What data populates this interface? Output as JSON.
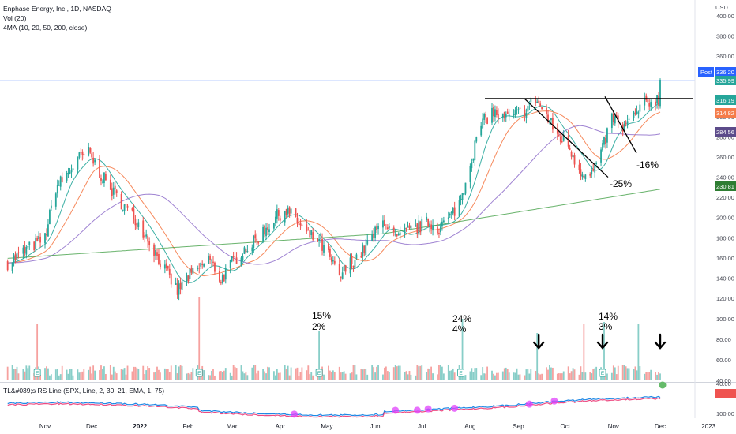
{
  "header": {
    "title": "Enphase Energy, Inc., 1D, NASDAQ",
    "vol_label": "Vol (20)",
    "ma_label": "4MA (10, 20, 50, 200, close)",
    "rs_label": "TL&#039;s RS Line (SPX, Line, 2, 30, 21, EMA, 1, 75)"
  },
  "chart_data": {
    "type": "line",
    "title": "Enphase Energy, Inc., 1D, NASDAQ",
    "y_axis": {
      "currency": "USD",
      "ticks": [
        400,
        380,
        360,
        340,
        320,
        300,
        280,
        260,
        240,
        220,
        200,
        180,
        160,
        140,
        120,
        100,
        80,
        60,
        40
      ],
      "ylim": [
        40,
        405
      ]
    },
    "x_axis": {
      "tick_labels": [
        "Nov",
        "Dec",
        "2022",
        "Feb",
        "Mar",
        "Apr",
        "May",
        "Jun",
        "Jul",
        "Aug",
        "Sep",
        "Oct",
        "Nov",
        "Dec",
        "2023"
      ],
      "tick_dates": [
        "2021-11-01",
        "2021-12-01",
        "2022-01-01",
        "2022-02-01",
        "2022-03-01",
        "2022-04-01",
        "2022-05-01",
        "2022-06-01",
        "2022-07-01",
        "2022-08-01",
        "2022-09-01",
        "2022-10-01",
        "2022-11-01",
        "2022-12-01",
        "2023-01-01"
      ]
    },
    "price_path": [
      [
        "2021-10-08",
        155
      ],
      [
        "2021-10-20",
        168
      ],
      [
        "2021-11-01",
        180
      ],
      [
        "2021-11-08",
        230
      ],
      [
        "2021-11-15",
        242
      ],
      [
        "2021-11-22",
        258
      ],
      [
        "2021-11-29",
        264
      ],
      [
        "2021-12-06",
        245
      ],
      [
        "2021-12-13",
        228
      ],
      [
        "2021-12-20",
        215
      ],
      [
        "2021-12-28",
        200
      ],
      [
        "2022-01-04",
        185
      ],
      [
        "2022-01-11",
        165
      ],
      [
        "2022-01-18",
        145
      ],
      [
        "2022-01-25",
        127
      ],
      [
        "2022-01-31",
        140
      ],
      [
        "2022-02-07",
        148
      ],
      [
        "2022-02-14",
        160
      ],
      [
        "2022-02-22",
        138
      ],
      [
        "2022-03-01",
        155
      ],
      [
        "2022-03-08",
        168
      ],
      [
        "2022-03-15",
        175
      ],
      [
        "2022-03-22",
        188
      ],
      [
        "2022-03-29",
        200
      ],
      [
        "2022-04-04",
        208
      ],
      [
        "2022-04-11",
        198
      ],
      [
        "2022-04-18",
        183
      ],
      [
        "2022-04-25",
        178
      ],
      [
        "2022-05-02",
        162
      ],
      [
        "2022-05-09",
        140
      ],
      [
        "2022-05-16",
        155
      ],
      [
        "2022-05-23",
        165
      ],
      [
        "2022-05-31",
        182
      ],
      [
        "2022-06-07",
        198
      ],
      [
        "2022-06-14",
        178
      ],
      [
        "2022-06-21",
        185
      ],
      [
        "2022-06-28",
        190
      ],
      [
        "2022-07-05",
        195
      ],
      [
        "2022-07-12",
        190
      ],
      [
        "2022-07-19",
        200
      ],
      [
        "2022-07-26",
        218
      ],
      [
        "2022-08-01",
        255
      ],
      [
        "2022-08-08",
        292
      ],
      [
        "2022-08-15",
        305
      ],
      [
        "2022-08-22",
        298
      ],
      [
        "2022-08-29",
        300
      ],
      [
        "2022-09-06",
        308
      ],
      [
        "2022-09-12",
        318
      ],
      [
        "2022-09-19",
        300
      ],
      [
        "2022-09-26",
        282
      ],
      [
        "2022-10-03",
        272
      ],
      [
        "2022-10-10",
        248
      ],
      [
        "2022-10-17",
        240
      ],
      [
        "2022-10-24",
        262
      ],
      [
        "2022-10-31",
        300
      ],
      [
        "2022-11-07",
        288
      ],
      [
        "2022-11-14",
        300
      ],
      [
        "2022-11-21",
        312
      ],
      [
        "2022-11-28",
        318
      ],
      [
        "2022-12-01",
        316
      ]
    ],
    "current_close": 336.2,
    "series": [
      {
        "name": "Post",
        "last_value": 336.2,
        "color": "#2962ff"
      },
      {
        "name": "MA 10",
        "last_value": 316.19,
        "color": "#26a69a"
      },
      {
        "name": "MA 20",
        "last_value": 314.82,
        "color": "#f57c4a"
      },
      {
        "name": "MA 50",
        "last_value": 284.56,
        "color": "#9575cd"
      },
      {
        "name": "MA 200",
        "last_value": 230.81,
        "color": "#43a047"
      }
    ],
    "last_price_label": 335.99,
    "resistance_level": 318,
    "annotations": {
      "decline_1": "-25%",
      "decline_2": "-16%",
      "vol_mark_apr_top": "15%",
      "vol_mark_apr_bottom": "2%",
      "vol_mark_aug_top": "24%",
      "vol_mark_aug_bottom": "4%",
      "vol_mark_oct_top": "14%",
      "vol_mark_oct_bottom": "3%"
    },
    "earnings_dates": [
      "2021-10-27",
      "2022-02-08",
      "2022-04-26",
      "2022-07-26",
      "2022-10-25"
    ],
    "volume_spikes": [
      [
        "2021-10-27",
        72
      ],
      [
        "2022-02-08",
        105
      ],
      [
        "2022-04-26",
        62
      ],
      [
        "2022-07-27",
        78
      ],
      [
        "2022-09-13",
        60
      ],
      [
        "2022-10-13",
        72
      ],
      [
        "2022-10-26",
        74
      ],
      [
        "2022-11-17",
        72
      ]
    ],
    "down_arrows": [
      "2022-09-14",
      "2022-10-25",
      "2022-12-01"
    ],
    "rs_axis": {
      "ticks": [
        100,
        40
      ]
    },
    "legend": "top-left",
    "grid": false
  },
  "colors": {
    "up": "#26a69a",
    "down": "#ef5350",
    "axis_text": "#131722",
    "tick_text": "#434651"
  }
}
